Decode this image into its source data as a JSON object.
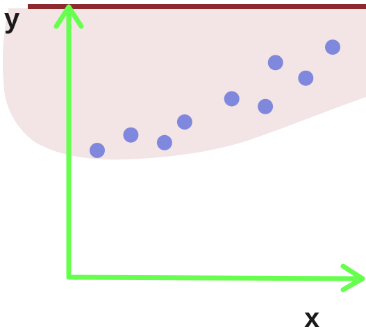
{
  "diagram": {
    "y_axis_label": "y",
    "x_axis_label": "x",
    "colors": {
      "axis": "#66ff4d",
      "points": "#8088dd",
      "cloud": "#f3e4e6",
      "top_bar": "#8c2a2e",
      "label": "#1a1a1a"
    },
    "chart_data": {
      "type": "scatter",
      "title": "",
      "xlabel": "x",
      "ylabel": "y",
      "grid": false,
      "points": [
        {
          "x": 1.0,
          "y": 1.0
        },
        {
          "x": 2.0,
          "y": 1.6
        },
        {
          "x": 3.0,
          "y": 1.3
        },
        {
          "x": 3.6,
          "y": 2.1
        },
        {
          "x": 5.0,
          "y": 3.0
        },
        {
          "x": 6.0,
          "y": 2.7
        },
        {
          "x": 6.3,
          "y": 4.4
        },
        {
          "x": 7.2,
          "y": 3.8
        },
        {
          "x": 8.0,
          "y": 5.0
        }
      ]
    }
  }
}
